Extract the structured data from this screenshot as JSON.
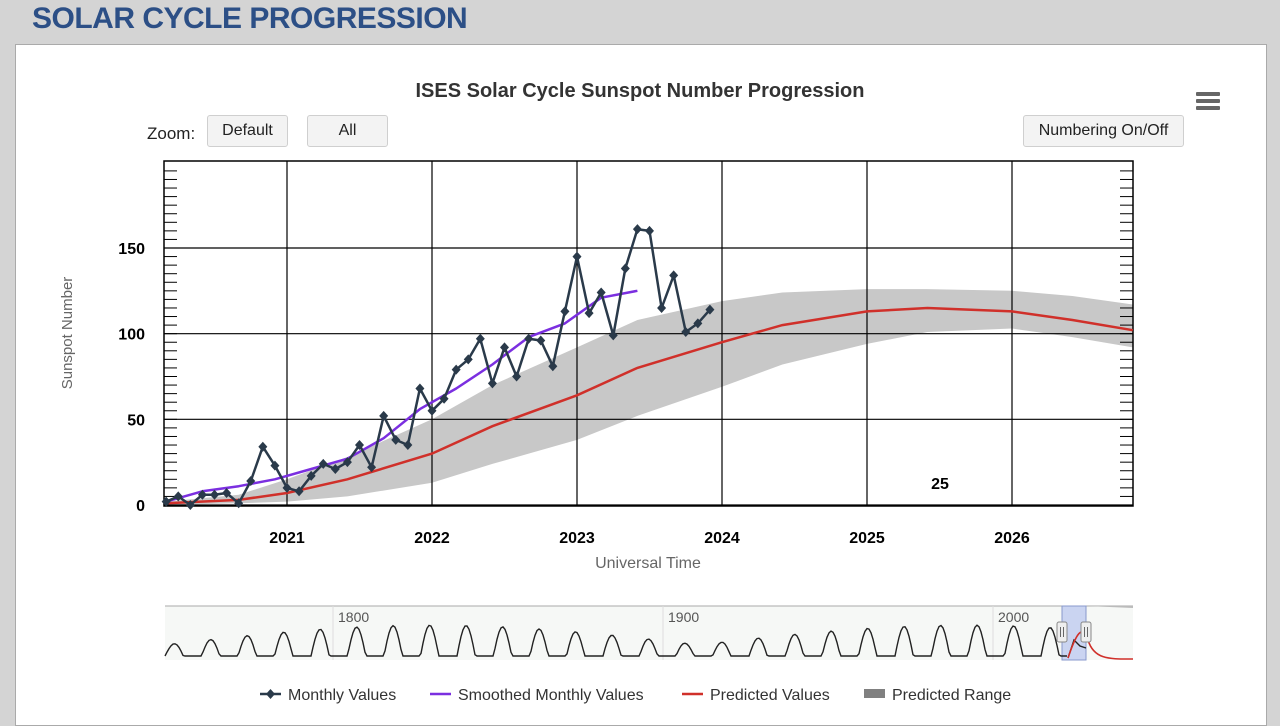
{
  "page_title": "SOLAR CYCLE PROGRESSION",
  "zoom": {
    "label": "Zoom:",
    "default_label": "Default",
    "all_label": "All"
  },
  "numbering_label": "Numbering On/Off",
  "menu_icon": "hamburger-menu-icon",
  "chart_data": {
    "type": "line",
    "title": "ISES Solar Cycle Sunspot Number Progression",
    "xlabel": "Universal Time",
    "ylabel": "Sunspot Number",
    "xlim": [
      "2020-03-01",
      "2026-11-01"
    ],
    "ylim": [
      0,
      200
    ],
    "x_ticks": [
      "2021",
      "2022",
      "2023",
      "2024",
      "2025",
      "2026"
    ],
    "y_ticks": [
      "0",
      "50",
      "100",
      "150"
    ],
    "cycle_annotation": "25",
    "legend": {
      "position": "bottom",
      "items": [
        "Monthly Values",
        "Smoothed Monthly Values",
        "Predicted Values",
        "Predicted Range"
      ]
    },
    "colors": {
      "monthly": "#2a3a4a",
      "smoothed": "#7b2fe0",
      "predicted": "#d0302a",
      "range": "#c8c8c8"
    },
    "series": [
      {
        "name": "Monthly Values",
        "x": [
          "2020-03",
          "2020-04",
          "2020-05",
          "2020-06",
          "2020-07",
          "2020-08",
          "2020-09",
          "2020-10",
          "2020-11",
          "2020-12",
          "2021-01",
          "2021-02",
          "2021-03",
          "2021-04",
          "2021-05",
          "2021-06",
          "2021-07",
          "2021-08",
          "2021-09",
          "2021-10",
          "2021-11",
          "2021-12",
          "2022-01",
          "2022-02",
          "2022-03",
          "2022-04",
          "2022-05",
          "2022-06",
          "2022-07",
          "2022-08",
          "2022-09",
          "2022-10",
          "2022-11",
          "2022-12",
          "2023-01",
          "2023-02",
          "2023-03",
          "2023-04",
          "2023-05",
          "2023-06",
          "2023-07",
          "2023-08",
          "2023-09",
          "2023-10",
          "2023-11",
          "2023-12"
        ],
        "values": [
          2,
          5,
          0,
          6,
          6,
          7,
          1,
          14,
          34,
          23,
          10,
          8,
          17,
          24,
          21,
          25,
          35,
          22,
          52,
          38,
          35,
          68,
          55,
          62,
          79,
          85,
          97,
          71,
          92,
          75,
          97,
          96,
          81,
          113,
          145,
          112,
          124,
          99,
          138,
          161,
          160,
          115,
          134,
          101,
          106,
          114
        ]
      },
      {
        "name": "Smoothed Monthly Values",
        "x": [
          "2020-03",
          "2020-06",
          "2020-09",
          "2020-12",
          "2021-03",
          "2021-06",
          "2021-09",
          "2021-12",
          "2022-03",
          "2022-06",
          "2022-09",
          "2022-12",
          "2023-03",
          "2023-06"
        ],
        "values": [
          2,
          8,
          11,
          15,
          21,
          27,
          39,
          56,
          68,
          82,
          98,
          106,
          121,
          125
        ]
      },
      {
        "name": "Predicted Values",
        "x": [
          "2020-03",
          "2020-09",
          "2021-01",
          "2021-06",
          "2022-01",
          "2022-06",
          "2023-01",
          "2023-06",
          "2024-01",
          "2024-06",
          "2025-01",
          "2025-06",
          "2026-01",
          "2026-06",
          "2026-11"
        ],
        "values": [
          1,
          3,
          7,
          15,
          30,
          46,
          64,
          80,
          95,
          105,
          113,
          115,
          113,
          108,
          102
        ]
      },
      {
        "name": "Predicted Range",
        "x": [
          "2020-03",
          "2020-09",
          "2021-01",
          "2021-06",
          "2022-01",
          "2022-06",
          "2023-01",
          "2023-06",
          "2024-01",
          "2024-06",
          "2025-01",
          "2025-06",
          "2026-01",
          "2026-06",
          "2026-11"
        ],
        "upper": [
          2,
          6,
          15,
          28,
          50,
          70,
          92,
          108,
          119,
          124,
          126,
          126,
          125,
          122,
          117
        ],
        "lower": [
          0,
          1,
          2,
          5,
          13,
          24,
          38,
          52,
          69,
          82,
          94,
          101,
          103,
          98,
          92
        ]
      }
    ],
    "navigator": {
      "x_ticks": [
        "1800",
        "1900",
        "2000"
      ]
    }
  }
}
